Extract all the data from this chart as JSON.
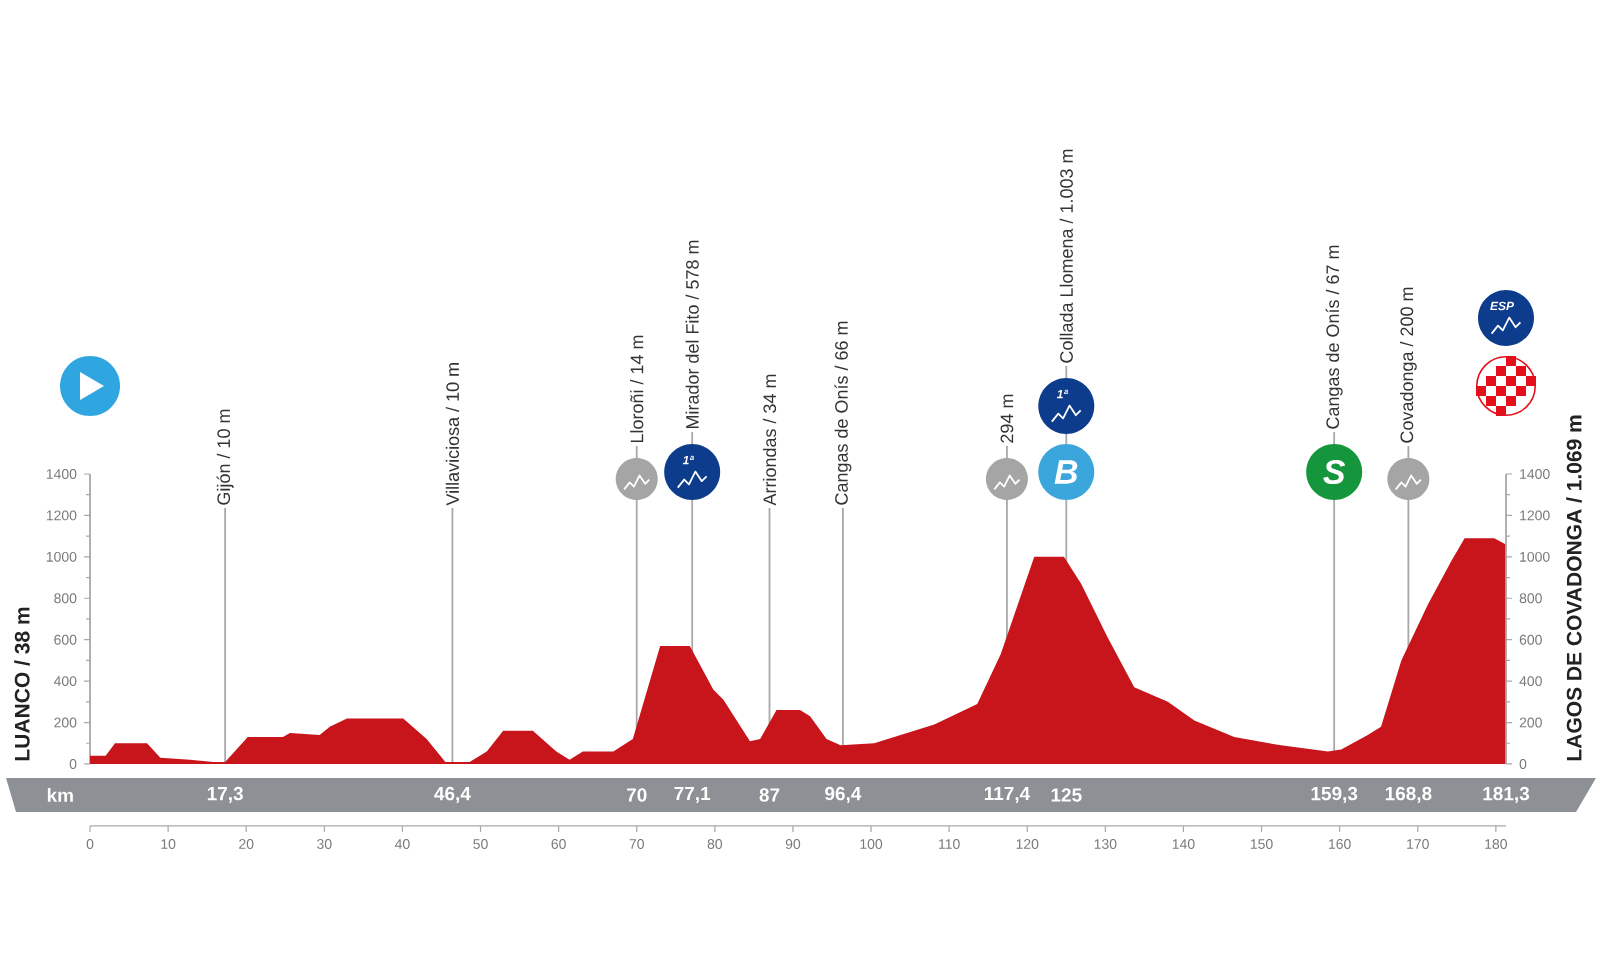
{
  "chart_data": {
    "type": "area",
    "x2label": "km",
    "color": "#c8141b",
    "x": [
      0,
      2,
      3.2,
      7.3,
      9,
      12.8,
      15.8,
      17.3,
      20.2,
      24.7,
      25.6,
      29.4,
      30.7,
      32.9,
      40.1,
      43.1,
      45.5,
      48.6,
      50.8,
      52.9,
      56.7,
      59.7,
      61.4,
      63.1,
      67,
      69.5,
      73,
      76.8,
      79.8,
      81.1,
      84.5,
      85.8,
      87.9,
      90.9,
      92.2,
      94.3,
      96.1,
      100.4,
      108.1,
      113.6,
      116.6,
      120.9,
      124.7,
      126.9,
      130.3,
      133.7,
      138,
      141.4,
      146.5,
      152.5,
      158.5,
      160.2,
      163.6,
      165.3,
      167.9,
      171.3,
      174.3,
      176,
      179.8,
      181.3
    ],
    "values": [
      40,
      40,
      100,
      100,
      30,
      20,
      10,
      10,
      130,
      130,
      150,
      140,
      180,
      220,
      220,
      120,
      10,
      10,
      60,
      160,
      160,
      60,
      20,
      60,
      60,
      120,
      570,
      570,
      360,
      310,
      110,
      120,
      260,
      260,
      230,
      120,
      90,
      100,
      190,
      290,
      530,
      1000,
      1000,
      870,
      610,
      370,
      300,
      210,
      130,
      90,
      60,
      70,
      140,
      180,
      500,
      770,
      980,
      1090,
      1090,
      1060
    ],
    "xlim": [
      0,
      181.3
    ],
    "xticks": [
      0,
      10,
      20,
      30,
      40,
      50,
      60,
      70,
      80,
      90,
      100,
      110,
      120,
      130,
      140,
      150,
      160,
      170,
      180
    ],
    "ylim": [
      0,
      1400
    ],
    "yticks": [
      0,
      200,
      400,
      600,
      800,
      1000,
      1200,
      1400
    ],
    "y2lim": [
      0,
      1400
    ],
    "y2ticks": [
      0,
      200,
      400,
      600,
      800,
      1000,
      1200,
      1400
    ],
    "x2lim": [
      0,
      181.3
    ],
    "x2ticks": [
      {
        "value": 17.3,
        "label": "17,3"
      },
      {
        "value": 46.4,
        "label": "46,4"
      },
      70,
      {
        "value": 77.1,
        "label": "77,1"
      },
      87,
      {
        "value": 96.4,
        "label": "96,4"
      },
      {
        "value": 117.4,
        "label": "117,4"
      },
      125,
      {
        "value": 159.3,
        "label": "159,3"
      },
      {
        "value": 168.8,
        "label": "168,8"
      },
      {
        "value": 181.3,
        "label": "181,3"
      }
    ],
    "ref_lines": [
      {
        "axis": "x",
        "value": 17.3,
        "label": "Gijón / 10 m",
        "color": "#a8a8a8"
      },
      {
        "axis": "x",
        "value": 46.4,
        "label": "Villaviciosa / 10 m",
        "color": "#a8a8a8"
      },
      {
        "axis": "x",
        "value": 70,
        "label": "Lloroñi / 14 m",
        "color": "#a8a8a8"
      },
      {
        "axis": "x",
        "value": 77.1,
        "label": "Mirador del Fito / 578 m",
        "color": "#a8a8a8"
      },
      {
        "axis": "x",
        "value": 87,
        "label": "Arriondas / 34 m",
        "color": "#a8a8a8"
      },
      {
        "axis": "x",
        "value": 96.4,
        "label": "Cangas de Onís / 66 m",
        "color": "#a8a8a8"
      },
      {
        "axis": "x",
        "value": 117.4,
        "label": "294 m",
        "color": "#a8a8a8"
      },
      {
        "axis": "x",
        "value": 125,
        "label": "Collada Llomena / 1.003 m",
        "color": "#a8a8a8"
      },
      {
        "axis": "x",
        "value": 159.3,
        "label": "Cangas de Onís / 67 m",
        "color": "#a8a8a8"
      },
      {
        "axis": "x",
        "value": 168.8,
        "label": "Covadonga / 200 m",
        "color": "#a8a8a8"
      }
    ],
    "annotations": [
      "1ª",
      "B",
      "1ª",
      "S",
      "ESP",
      "LUANCO / 38 m",
      "LAGOS DE COVADONGA / 1.069 m"
    ]
  }
}
